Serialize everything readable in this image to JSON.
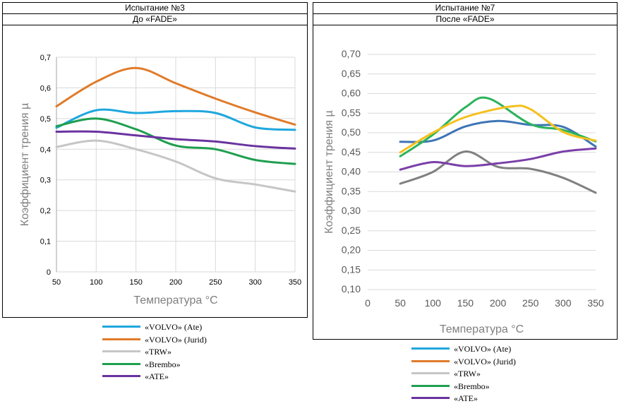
{
  "chart_data": [
    {
      "type": "line",
      "header_top": "Испытание №3",
      "header_bottom": "До «FADE»",
      "xlabel": "Температура °C",
      "ylabel": "Коэффициент трения µ",
      "x": [
        50,
        100,
        150,
        200,
        250,
        300,
        350
      ],
      "xlim": [
        50,
        350
      ],
      "ylim": [
        0,
        0.7
      ],
      "xticks": [
        "50",
        "100",
        "150",
        "200",
        "250",
        "300",
        "350"
      ],
      "yticks": [
        "0",
        "0,1",
        "0,2",
        "0,3",
        "0,4",
        "0,5",
        "0,6",
        "0,7"
      ],
      "grid": true,
      "series": [
        {
          "name": "«VOLVO» (Ate)",
          "color": "#1fa7de",
          "values": [
            0.47,
            0.527,
            0.518,
            0.524,
            0.518,
            0.471,
            0.463
          ]
        },
        {
          "name": "«VOLVO» (Jurid)",
          "color": "#e07b2a",
          "values": [
            0.54,
            0.62,
            0.665,
            0.615,
            0.565,
            0.52,
            0.48
          ]
        },
        {
          "name": "«TRW»",
          "color": "#c6c6c6",
          "values": [
            0.407,
            0.428,
            0.4,
            0.36,
            0.305,
            0.285,
            0.262
          ]
        },
        {
          "name": "«Brembo»",
          "color": "#1e9f4f",
          "values": [
            0.475,
            0.5,
            0.465,
            0.412,
            0.4,
            0.365,
            0.352
          ]
        },
        {
          "name": "«ATE»",
          "color": "#6a33a0",
          "values": [
            0.457,
            0.457,
            0.445,
            0.433,
            0.425,
            0.41,
            0.402
          ]
        }
      ]
    },
    {
      "type": "line",
      "header_top": "Испытание №7",
      "header_bottom": "После «FADE»",
      "xlabel": "Температура °C",
      "ylabel": "Коэффициент трения µ",
      "xlim": [
        0,
        350
      ],
      "ylim": [
        0.1,
        0.7
      ],
      "xticks": [
        "0",
        "50",
        "100",
        "150",
        "200",
        "250",
        "300",
        "350"
      ],
      "yticks": [
        "0,10",
        "0,15",
        "0,20",
        "0,25",
        "0,30",
        "0,35",
        "0,40",
        "0,45",
        "0,50",
        "0,55",
        "0,60",
        "0,65",
        "0,70"
      ],
      "grid": true,
      "legend_entries": [
        {
          "name": "«VOLVO» (Ate)",
          "color": "#1fa7de"
        },
        {
          "name": "«VOLVO» (Jurid)",
          "color": "#e07b2a"
        },
        {
          "name": "«TRW»",
          "color": "#c6c6c6"
        },
        {
          "name": "«Brembo»",
          "color": "#1e9f4f"
        },
        {
          "name": "«ATE»",
          "color": "#6a33a0"
        }
      ],
      "series": [
        {
          "name": "blue",
          "color": "#3d74b5",
          "x": [
            50,
            100,
            150,
            200,
            250,
            300,
            350
          ],
          "values": [
            0.477,
            0.48,
            0.516,
            0.53,
            0.52,
            0.515,
            0.465
          ]
        },
        {
          "name": "green",
          "color": "#2bb35a",
          "x": [
            50,
            100,
            150,
            185,
            250,
            300,
            350
          ],
          "values": [
            0.44,
            0.495,
            0.565,
            0.588,
            0.522,
            0.507,
            0.478
          ]
        },
        {
          "name": "yellow",
          "color": "#f5c01d",
          "x": [
            50,
            100,
            150,
            220,
            250,
            300,
            350
          ],
          "values": [
            0.45,
            0.5,
            0.54,
            0.567,
            0.56,
            0.502,
            0.48
          ]
        },
        {
          "name": "grey",
          "color": "#808080",
          "x": [
            50,
            100,
            150,
            200,
            250,
            300,
            350
          ],
          "values": [
            0.37,
            0.4,
            0.452,
            0.413,
            0.408,
            0.385,
            0.347
          ]
        },
        {
          "name": "purple",
          "color": "#7b3fa8",
          "x": [
            50,
            100,
            150,
            200,
            250,
            300,
            350
          ],
          "values": [
            0.406,
            0.425,
            0.415,
            0.422,
            0.433,
            0.452,
            0.46
          ]
        }
      ]
    }
  ]
}
